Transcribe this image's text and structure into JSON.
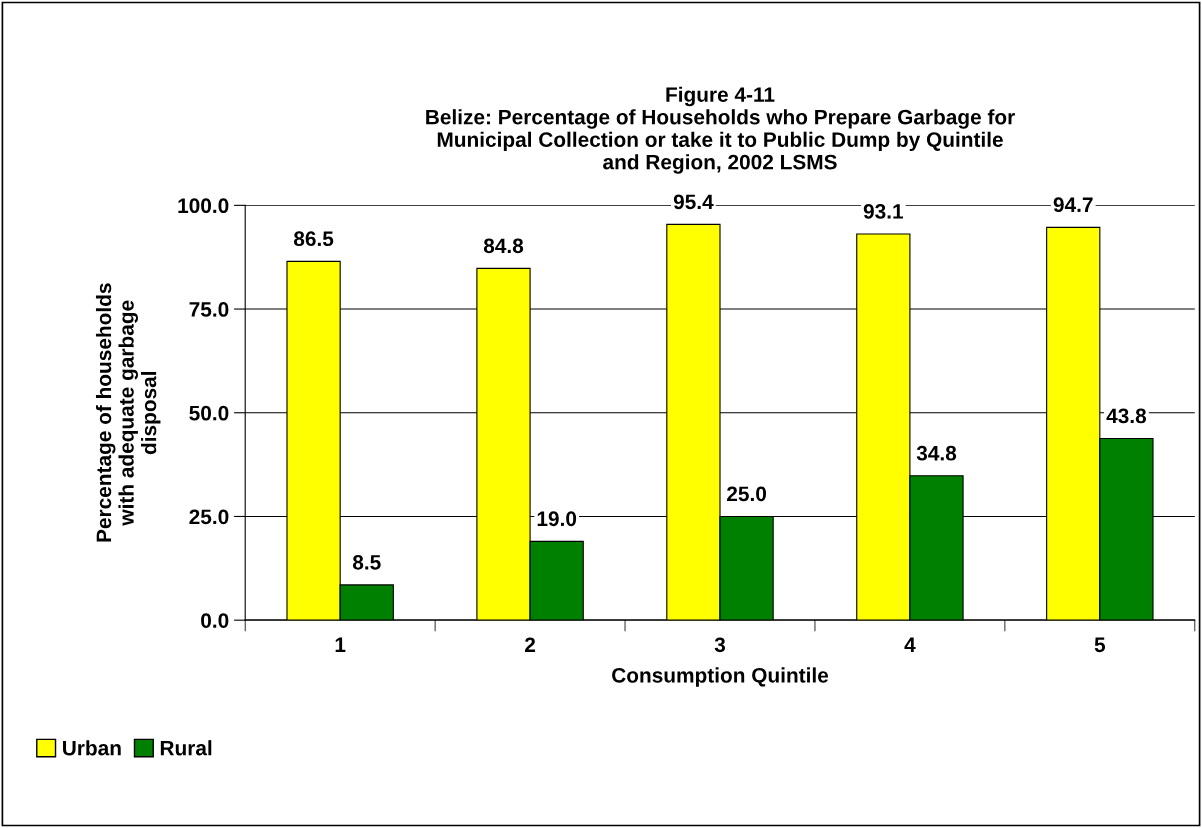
{
  "chart_data": {
    "type": "bar",
    "title": "Figure 4-11\nBelize: Percentage of Households who Prepare Garbage for\nMunicipal Collection or take it to Public Dump by Quintile\nand Region, 2002 LSMS",
    "xlabel": "Consumption Quintile",
    "ylabel": "Percentage of households\nwith adequate garbage\ndisposal",
    "categories": [
      "1",
      "2",
      "3",
      "4",
      "5"
    ],
    "series": [
      {
        "name": "Urban",
        "color": "#ffff00",
        "values": [
          86.5,
          84.8,
          95.4,
          93.1,
          94.7
        ]
      },
      {
        "name": "Rural",
        "color": "#008000",
        "values": [
          8.5,
          19.0,
          25.0,
          34.8,
          43.8
        ]
      }
    ],
    "value_labels": [
      [
        "86.5",
        "84.8",
        "95.4",
        "93.1",
        "94.7"
      ],
      [
        "8.5",
        "19.0",
        "25.0",
        "34.8",
        "43.8"
      ]
    ],
    "ylim": [
      0,
      100
    ],
    "yticks": [
      {
        "value": 0,
        "label": "0.0"
      },
      {
        "value": 25,
        "label": "25.0"
      },
      {
        "value": 50,
        "label": "50.0"
      },
      {
        "value": 75,
        "label": "75.0"
      },
      {
        "value": 100,
        "label": "100.0"
      }
    ],
    "grid": "y",
    "legend": "bottom left"
  }
}
